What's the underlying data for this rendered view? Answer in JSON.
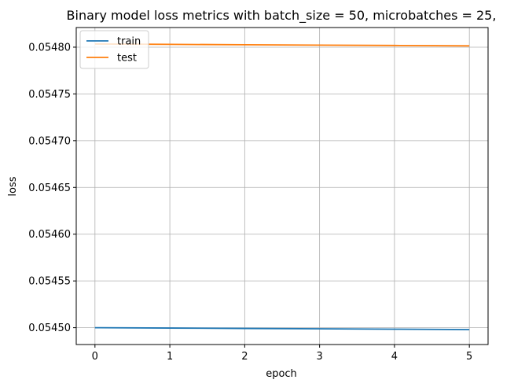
{
  "chart_data": {
    "type": "line",
    "title": "Binary model loss metrics with batch_size = 50, microbatches = 25,",
    "xlabel": "epoch",
    "ylabel": "loss",
    "xlim": [
      -0.25,
      5.25
    ],
    "ylim": [
      0.054482,
      0.054821
    ],
    "x": [
      0,
      1,
      2,
      3,
      4,
      5
    ],
    "xticks": [
      0,
      1,
      2,
      3,
      4,
      5
    ],
    "xtick_labels": [
      "0",
      "1",
      "2",
      "3",
      "4",
      "5"
    ],
    "yticks": [
      0.0545,
      0.05455,
      0.0546,
      0.05465,
      0.0547,
      0.05475,
      0.0548
    ],
    "ytick_labels": [
      "0.05450",
      "0.05455",
      "0.05460",
      "0.05465",
      "0.05470",
      "0.05475",
      "0.05480"
    ],
    "grid": true,
    "legend_position": "top-left",
    "series": [
      {
        "name": "train",
        "color": "#1f77b4",
        "values": [
          0.0545,
          0.0544996,
          0.0544992,
          0.0544988,
          0.0544984,
          0.054498
        ]
      },
      {
        "name": "test",
        "color": "#ff7f0e",
        "values": [
          0.0548034,
          0.054803,
          0.0548026,
          0.0548022,
          0.0548018,
          0.0548014
        ]
      }
    ]
  }
}
